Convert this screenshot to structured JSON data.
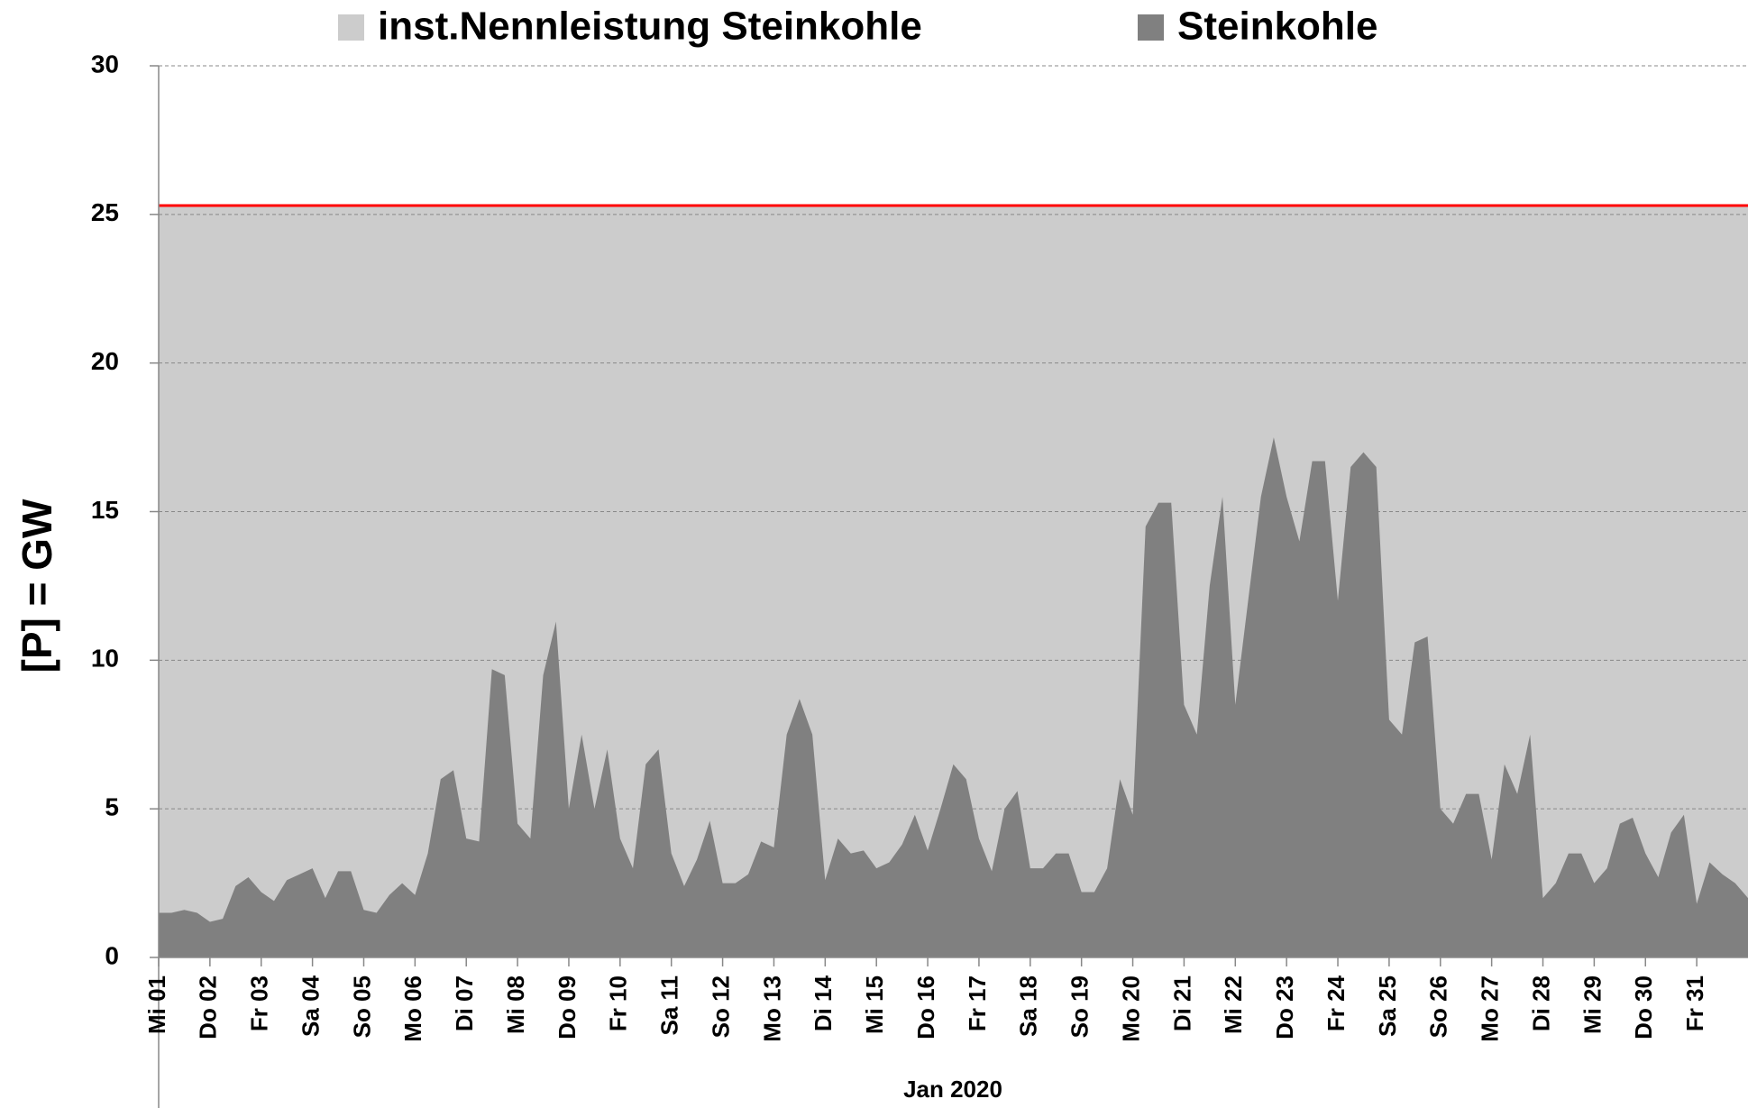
{
  "chart_data": {
    "type": "area",
    "ylabel": "[P]  =  GW",
    "xlabel": "Jan 2020",
    "ylim": [
      0,
      30
    ],
    "yticks": [
      0,
      5,
      10,
      15,
      20,
      25,
      30
    ],
    "xlim": [
      0,
      31
    ],
    "xticks": [
      {
        "value": 0,
        "label": "Mi 01"
      },
      {
        "value": 1,
        "label": "Do 02"
      },
      {
        "value": 2,
        "label": "Fr 03"
      },
      {
        "value": 3,
        "label": "Sa 04"
      },
      {
        "value": 4,
        "label": "So 05"
      },
      {
        "value": 5,
        "label": "Mo 06"
      },
      {
        "value": 6,
        "label": "Di 07"
      },
      {
        "value": 7,
        "label": "Mi 08"
      },
      {
        "value": 8,
        "label": "Do 09"
      },
      {
        "value": 9,
        "label": "Fr 10"
      },
      {
        "value": 10,
        "label": "Sa 11"
      },
      {
        "value": 11,
        "label": "So 12"
      },
      {
        "value": 12,
        "label": "Mo 13"
      },
      {
        "value": 13,
        "label": "Di 14"
      },
      {
        "value": 14,
        "label": "Mi 15"
      },
      {
        "value": 15,
        "label": "Do 16"
      },
      {
        "value": 16,
        "label": "Fr 17"
      },
      {
        "value": 17,
        "label": "Sa 18"
      },
      {
        "value": 18,
        "label": "So 19"
      },
      {
        "value": 19,
        "label": "Mo 20"
      },
      {
        "value": 20,
        "label": "Di 21"
      },
      {
        "value": 21,
        "label": "Mi 22"
      },
      {
        "value": 22,
        "label": "Do 23"
      },
      {
        "value": 23,
        "label": "Fr 24"
      },
      {
        "value": 24,
        "label": "Sa 25"
      },
      {
        "value": 25,
        "label": "So 26"
      },
      {
        "value": 26,
        "label": "Mo 27"
      },
      {
        "value": 27,
        "label": "Di 28"
      },
      {
        "value": 28,
        "label": "Mi 29"
      },
      {
        "value": 29,
        "label": "Do 30"
      },
      {
        "value": 30,
        "label": "Fr 31"
      }
    ],
    "grid": true,
    "legend": "top",
    "x": [
      0,
      0.25,
      0.5,
      0.75,
      1,
      1.25,
      1.5,
      1.75,
      2,
      2.25,
      2.5,
      2.75,
      3,
      3.25,
      3.5,
      3.75,
      4,
      4.25,
      4.5,
      4.75,
      5,
      5.25,
      5.5,
      5.75,
      6,
      6.25,
      6.5,
      6.75,
      7,
      7.25,
      7.5,
      7.75,
      8,
      8.25,
      8.5,
      8.75,
      9,
      9.25,
      9.5,
      9.75,
      10,
      10.25,
      10.5,
      10.75,
      11,
      11.25,
      11.5,
      11.75,
      12,
      12.25,
      12.5,
      12.75,
      13,
      13.25,
      13.5,
      13.75,
      14,
      14.25,
      14.5,
      14.75,
      15,
      15.25,
      15.5,
      15.75,
      16,
      16.25,
      16.5,
      16.75,
      17,
      17.25,
      17.5,
      17.75,
      18,
      18.25,
      18.5,
      18.75,
      19,
      19.25,
      19.5,
      19.75,
      20,
      20.25,
      20.5,
      20.75,
      21,
      21.25,
      21.5,
      21.75,
      22,
      22.25,
      22.5,
      22.75,
      23,
      23.25,
      23.5,
      23.75,
      24,
      24.25,
      24.5,
      24.75,
      25,
      25.25,
      25.5,
      25.75,
      26,
      26.25,
      26.5,
      26.75,
      27,
      27.25,
      27.5,
      27.75,
      28,
      28.25,
      28.5,
      28.75,
      29,
      29.25,
      29.5,
      29.75,
      30,
      30.25,
      30.5,
      30.75,
      31
    ],
    "series": [
      {
        "name": "inst.Nennleistung Steinkohle",
        "color": "#cccccc",
        "line_color": "#ff0000",
        "x": [
          0,
          31
        ],
        "values": [
          25.3,
          25.3
        ]
      },
      {
        "name": "Steinkohle",
        "color": "#808080",
        "values": [
          1.5,
          1.5,
          1.6,
          1.5,
          1.2,
          1.3,
          2.4,
          2.7,
          2.2,
          1.9,
          2.6,
          2.8,
          3.0,
          2.0,
          2.9,
          2.9,
          1.6,
          1.5,
          2.1,
          2.5,
          2.1,
          3.5,
          6.0,
          6.3,
          4.0,
          3.9,
          9.7,
          9.5,
          4.5,
          4.0,
          9.5,
          11.3,
          5.0,
          7.5,
          5.0,
          7.0,
          4.0,
          3.0,
          6.5,
          7.0,
          3.5,
          2.4,
          3.3,
          4.6,
          2.5,
          2.5,
          2.8,
          3.9,
          3.7,
          7.5,
          8.7,
          7.5,
          2.6,
          4.0,
          3.5,
          3.6,
          3.0,
          3.2,
          3.8,
          4.8,
          3.6,
          5.0,
          6.5,
          6.0,
          4.0,
          2.9,
          5.0,
          5.6,
          3.0,
          3.0,
          3.5,
          3.5,
          2.2,
          2.2,
          3.0,
          6.0,
          4.8,
          14.5,
          15.3,
          15.3,
          8.5,
          7.5,
          12.5,
          15.5,
          8.5,
          12.0,
          15.5,
          17.5,
          15.5,
          14.0,
          16.7,
          16.7,
          12.0,
          16.5,
          17.0,
          16.5,
          8.0,
          7.5,
          10.6,
          10.8,
          5.0,
          4.5,
          5.5,
          5.5,
          3.3,
          6.5,
          5.5,
          7.5,
          2.0,
          2.5,
          3.5,
          3.5,
          2.5,
          3.0,
          4.5,
          4.7,
          3.5,
          2.7,
          4.2,
          4.8,
          1.8,
          3.2,
          2.8,
          2.5,
          2.0
        ]
      }
    ]
  }
}
